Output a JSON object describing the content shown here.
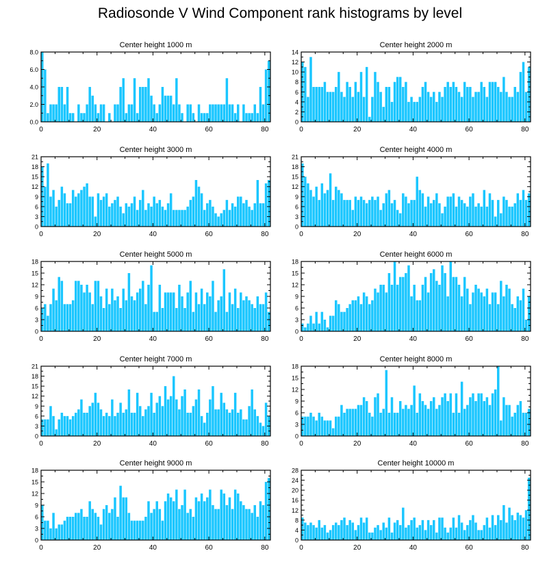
{
  "title": "Radiosonde V Wind Component rank histograms by level",
  "colors": {
    "bar": "#1ac6ff",
    "bar_edge": "#ffffff",
    "axis": "#000000",
    "background": "#ffffff"
  },
  "chart_data": [
    {
      "type": "bar",
      "title": "Center height 1000 m",
      "xlim": [
        0,
        82
      ],
      "xticks": [
        0,
        20,
        40,
        60,
        80
      ],
      "ylim": [
        0,
        8
      ],
      "yticks": [
        0,
        2,
        4,
        6,
        8
      ],
      "ytick_labels": [
        "0.0",
        "2.0",
        "4.0",
        "6.0",
        "8.0"
      ],
      "values": [
        8,
        6,
        1,
        2,
        2,
        2,
        4,
        4,
        2,
        4,
        1,
        1,
        0,
        2,
        1,
        1,
        2,
        4,
        3,
        2,
        1,
        2,
        2,
        0,
        1,
        0,
        2,
        2,
        4,
        5,
        1,
        2,
        2,
        5,
        1,
        4,
        4,
        4,
        5,
        3,
        2,
        1,
        2,
        4,
        3,
        3,
        3,
        2,
        5,
        2,
        1,
        0,
        2,
        2,
        1,
        0,
        2,
        1,
        1,
        1,
        2,
        2,
        2,
        2,
        2,
        2,
        5,
        2,
        2,
        1,
        2,
        0,
        2,
        1,
        1,
        1,
        2,
        1,
        4,
        2,
        6,
        7
      ]
    },
    {
      "type": "bar",
      "title": "Center height 2000 m",
      "xlim": [
        0,
        82
      ],
      "xticks": [
        0,
        20,
        40,
        60,
        80
      ],
      "ylim": [
        0,
        14
      ],
      "yticks": [
        0,
        2,
        4,
        6,
        8,
        10,
        12,
        14
      ],
      "ytick_labels": [
        "0",
        "2",
        "4",
        "6",
        "8",
        "10",
        "12",
        "14"
      ],
      "values": [
        12,
        11,
        5,
        13,
        7,
        7,
        7,
        7,
        8,
        6,
        6,
        6,
        7,
        10,
        6,
        5,
        8,
        7,
        5,
        8,
        6,
        10,
        5,
        11,
        1,
        5,
        10,
        8,
        6,
        3,
        7,
        7,
        4,
        8,
        9,
        9,
        7,
        8,
        4,
        5,
        4,
        4,
        5,
        7,
        8,
        6,
        5,
        6,
        4,
        6,
        5,
        7,
        8,
        7,
        8,
        7,
        6,
        5,
        8,
        7,
        7,
        5,
        6,
        6,
        8,
        7,
        5,
        8,
        8,
        8,
        7,
        6,
        9,
        6,
        5,
        5,
        7,
        6,
        10,
        12,
        6,
        11
      ]
    },
    {
      "type": "bar",
      "title": "Center height 3000 m",
      "xlim": [
        0,
        82
      ],
      "xticks": [
        0,
        20,
        40,
        60,
        80
      ],
      "ylim": [
        0,
        21
      ],
      "yticks": [
        0,
        3,
        6,
        9,
        12,
        15,
        18,
        21
      ],
      "ytick_labels": [
        "0",
        "3",
        "6",
        "9",
        "12",
        "15",
        "18",
        "21"
      ],
      "values": [
        18,
        12,
        19,
        9,
        11,
        6,
        8,
        12,
        10,
        7,
        7,
        11,
        9,
        10,
        11,
        12,
        13,
        9,
        9,
        3,
        10,
        8,
        9,
        10,
        6,
        7,
        8,
        9,
        6,
        4,
        7,
        6,
        7,
        9,
        5,
        8,
        11,
        5,
        7,
        6,
        9,
        7,
        8,
        6,
        5,
        7,
        10,
        5,
        5,
        5,
        5,
        5,
        6,
        8,
        9,
        14,
        12,
        10,
        5,
        7,
        8,
        6,
        4,
        3,
        4,
        5,
        8,
        5,
        7,
        6,
        9,
        9,
        7,
        8,
        6,
        5,
        7,
        14,
        7,
        7,
        13,
        14
      ]
    },
    {
      "type": "bar",
      "title": "Center height 4000 m",
      "xlim": [
        0,
        82
      ],
      "xticks": [
        0,
        20,
        40,
        60,
        80
      ],
      "ylim": [
        0,
        21
      ],
      "yticks": [
        0,
        3,
        6,
        9,
        12,
        15,
        18,
        21
      ],
      "ytick_labels": [
        "0",
        "3",
        "6",
        "9",
        "12",
        "15",
        "18",
        "21"
      ],
      "values": [
        19,
        15,
        13,
        11,
        9,
        12,
        8,
        13,
        10,
        11,
        16,
        8,
        12,
        11,
        10,
        8,
        8,
        8,
        5,
        9,
        8,
        9,
        8,
        7,
        8,
        9,
        8,
        9,
        5,
        7,
        10,
        11,
        7,
        8,
        5,
        4,
        10,
        9,
        7,
        8,
        8,
        15,
        11,
        10,
        6,
        9,
        7,
        8,
        10,
        7,
        4,
        6,
        9,
        9,
        10,
        6,
        9,
        8,
        7,
        6,
        9,
        10,
        6,
        7,
        6,
        11,
        6,
        10,
        8,
        3,
        8,
        4,
        9,
        8,
        6,
        6,
        7,
        10,
        8,
        11,
        8,
        10
      ]
    },
    {
      "type": "bar",
      "title": "Center height 5000 m",
      "xlim": [
        0,
        82
      ],
      "xticks": [
        0,
        20,
        40,
        60,
        80
      ],
      "ylim": [
        0,
        18
      ],
      "yticks": [
        0,
        3,
        6,
        9,
        12,
        15,
        18
      ],
      "ytick_labels": [
        "0",
        "3",
        "6",
        "9",
        "12",
        "15",
        "18"
      ],
      "values": [
        6,
        7,
        4,
        7,
        11,
        8,
        14,
        13,
        7,
        7,
        7,
        8,
        13,
        13,
        12,
        10,
        12,
        10,
        7,
        13,
        13,
        9,
        6,
        11,
        7,
        11,
        8,
        9,
        6,
        11,
        8,
        15,
        9,
        8,
        10,
        11,
        13,
        7,
        12,
        17,
        5,
        5,
        12,
        6,
        10,
        10,
        10,
        10,
        6,
        12,
        9,
        6,
        10,
        13,
        5,
        10,
        7,
        11,
        7,
        10,
        9,
        13,
        5,
        8,
        9,
        16,
        5,
        10,
        7,
        11,
        6,
        10,
        8,
        9,
        8,
        7,
        6,
        9,
        7,
        7,
        10,
        5
      ]
    },
    {
      "type": "bar",
      "title": "Center height 6000 m",
      "xlim": [
        0,
        82
      ],
      "xticks": [
        0,
        20,
        40,
        60,
        80
      ],
      "ylim": [
        0,
        18
      ],
      "yticks": [
        0,
        3,
        6,
        9,
        12,
        15,
        18
      ],
      "ytick_labels": [
        "0",
        "3",
        "6",
        "9",
        "12",
        "15",
        "18"
      ],
      "values": [
        2,
        1,
        2,
        4,
        2,
        5,
        2,
        5,
        3,
        1,
        4,
        4,
        8,
        7,
        5,
        5,
        6,
        7,
        8,
        8,
        9,
        7,
        10,
        9,
        7,
        8,
        11,
        10,
        12,
        12,
        10,
        15,
        12,
        18,
        12,
        14,
        14,
        15,
        17,
        9,
        12,
        8,
        8,
        12,
        14,
        10,
        15,
        16,
        13,
        12,
        17,
        15,
        9,
        18,
        14,
        14,
        12,
        9,
        14,
        11,
        7,
        10,
        12,
        11,
        10,
        9,
        11,
        7,
        10,
        10,
        7,
        13,
        9,
        12,
        11,
        7,
        6,
        9,
        8,
        11,
        3,
        9
      ]
    },
    {
      "type": "bar",
      "title": "Center height 7000 m",
      "xlim": [
        0,
        82
      ],
      "xticks": [
        0,
        20,
        40,
        60,
        80
      ],
      "ylim": [
        0,
        21
      ],
      "yticks": [
        0,
        3,
        6,
        9,
        12,
        15,
        18,
        21
      ],
      "ytick_labels": [
        "0",
        "3",
        "6",
        "9",
        "12",
        "15",
        "18",
        "21"
      ],
      "values": [
        5,
        5,
        5,
        9,
        6,
        2,
        5,
        7,
        6,
        6,
        5,
        6,
        7,
        8,
        11,
        7,
        7,
        9,
        10,
        13,
        10,
        8,
        6,
        7,
        6,
        11,
        6,
        7,
        10,
        7,
        8,
        14,
        7,
        7,
        13,
        9,
        6,
        8,
        9,
        13,
        7,
        10,
        12,
        9,
        15,
        11,
        12,
        18,
        11,
        8,
        12,
        14,
        7,
        7,
        9,
        11,
        14,
        6,
        4,
        7,
        11,
        15,
        8,
        8,
        13,
        10,
        8,
        7,
        8,
        13,
        7,
        8,
        5,
        5,
        9,
        14,
        8,
        6,
        4,
        3,
        10,
        6
      ]
    },
    {
      "type": "bar",
      "title": "Center height 8000 m",
      "xlim": [
        0,
        82
      ],
      "xticks": [
        0,
        20,
        40,
        60,
        80
      ],
      "ylim": [
        0,
        18
      ],
      "yticks": [
        0,
        3,
        6,
        9,
        12,
        15,
        18
      ],
      "ytick_labels": [
        "0",
        "3",
        "6",
        "9",
        "12",
        "15",
        "18"
      ],
      "values": [
        5,
        5,
        5,
        6,
        5,
        4,
        6,
        5,
        4,
        4,
        4,
        2,
        5,
        5,
        8,
        6,
        7,
        7,
        7,
        7,
        8,
        8,
        10,
        9,
        6,
        5,
        10,
        11,
        6,
        7,
        17,
        6,
        10,
        6,
        6,
        9,
        7,
        8,
        7,
        8,
        13,
        6,
        11,
        9,
        8,
        7,
        9,
        10,
        7,
        8,
        10,
        11,
        9,
        11,
        6,
        11,
        6,
        14,
        7,
        8,
        10,
        11,
        9,
        11,
        11,
        9,
        10,
        8,
        11,
        12,
        18,
        4,
        10,
        8,
        8,
        5,
        6,
        8,
        9,
        6,
        6,
        7
      ]
    },
    {
      "type": "bar",
      "title": "Center height 9000 m",
      "xlim": [
        0,
        82
      ],
      "xticks": [
        0,
        20,
        40,
        60,
        80
      ],
      "ylim": [
        0,
        18
      ],
      "yticks": [
        0,
        3,
        6,
        9,
        12,
        15,
        18
      ],
      "ytick_labels": [
        "0",
        "3",
        "6",
        "9",
        "12",
        "15",
        "18"
      ],
      "values": [
        9,
        5,
        5,
        3,
        7,
        3,
        4,
        4,
        5,
        6,
        6,
        6,
        7,
        7,
        8,
        6,
        6,
        10,
        8,
        7,
        6,
        4,
        8,
        9,
        7,
        8,
        11,
        6,
        14,
        11,
        11,
        7,
        5,
        5,
        5,
        5,
        5,
        6,
        10,
        7,
        8,
        10,
        8,
        5,
        10,
        12,
        11,
        10,
        13,
        8,
        9,
        13,
        7,
        8,
        6,
        11,
        10,
        12,
        10,
        11,
        13,
        9,
        8,
        8,
        13,
        12,
        9,
        11,
        8,
        13,
        12,
        10,
        9,
        8,
        8,
        7,
        9,
        6,
        10,
        9,
        15,
        16
      ]
    },
    {
      "type": "bar",
      "title": "Center height 10000 m",
      "xlim": [
        0,
        82
      ],
      "xticks": [
        0,
        20,
        40,
        60,
        80
      ],
      "ylim": [
        0,
        28
      ],
      "yticks": [
        0,
        4,
        8,
        12,
        16,
        20,
        24,
        28
      ],
      "ytick_labels": [
        "0",
        "4",
        "8",
        "12",
        "16",
        "20",
        "24",
        "28"
      ],
      "values": [
        9,
        7,
        6,
        7,
        6,
        5,
        8,
        5,
        6,
        3,
        4,
        6,
        7,
        6,
        8,
        9,
        6,
        8,
        7,
        4,
        6,
        9,
        7,
        9,
        3,
        3,
        5,
        6,
        4,
        7,
        5,
        9,
        3,
        7,
        8,
        6,
        13,
        5,
        6,
        8,
        9,
        5,
        6,
        8,
        4,
        8,
        6,
        8,
        3,
        9,
        9,
        5,
        3,
        5,
        9,
        5,
        10,
        7,
        4,
        6,
        8,
        10,
        7,
        4,
        4,
        6,
        9,
        5,
        10,
        6,
        10,
        8,
        14,
        7,
        13,
        10,
        8,
        11,
        10,
        9,
        12,
        25
      ]
    }
  ]
}
